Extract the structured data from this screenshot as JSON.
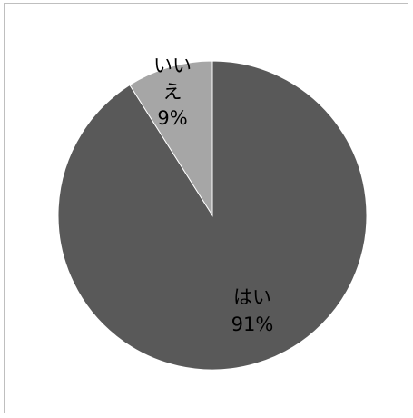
{
  "chart_data": {
    "type": "pie",
    "slices": [
      {
        "label": "はい",
        "value": 91,
        "value_label": "91%",
        "color": "#595959"
      },
      {
        "label": "いいえ",
        "value": 9,
        "value_label": "9%",
        "color": "#a6a6a6"
      }
    ],
    "label_lines": {
      "はい": [
        "はい",
        "91%"
      ],
      "いいえ": [
        "いい",
        "え",
        "9%"
      ]
    },
    "legend": false,
    "start_angle_deg": 0,
    "direction": "clockwise"
  }
}
